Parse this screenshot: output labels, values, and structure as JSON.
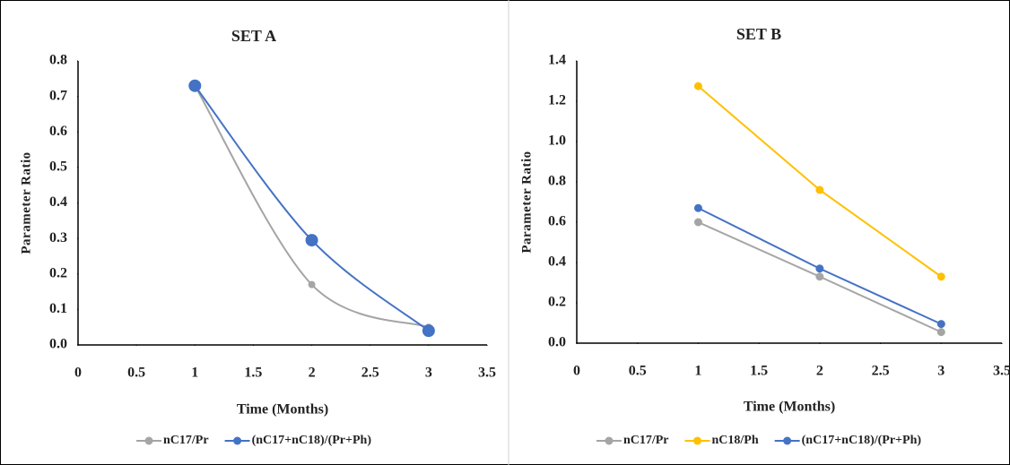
{
  "chart_data": [
    {
      "type": "line",
      "title": "SET A",
      "smooth": true,
      "x_label": "Time (Months)",
      "y_label": "Parameter Ratio",
      "xlim": [
        0,
        3.5
      ],
      "xticks": [
        0,
        0.5,
        1,
        1.5,
        2,
        2.5,
        3,
        3.5
      ],
      "ylim": [
        0,
        0.8
      ],
      "yticks": [
        {
          "value": 0,
          "label": "0.0"
        },
        0.1,
        0.2,
        0.3,
        0.4,
        0.5,
        0.6,
        0.7,
        0.8
      ],
      "x": [
        1,
        2,
        3
      ],
      "series": [
        {
          "name": "nC17/Pr",
          "color": "#a5a5a5",
          "values": [
            0.73,
            0.17,
            0.05
          ]
        },
        {
          "name": "(nC17+nC18)/(Pr+Ph)",
          "color": "#4472c4",
          "values": [
            0.73,
            0.295,
            0.04
          ]
        }
      ]
    },
    {
      "type": "line",
      "title": "SET B",
      "smooth": false,
      "x_label": "Time (Months)",
      "y_label": "Parameter  Ratio",
      "xlim": [
        0,
        3.5
      ],
      "xticks": [
        0,
        0.5,
        1,
        1.5,
        2,
        2.5,
        3,
        3.5
      ],
      "ylim": [
        0,
        1.4
      ],
      "yticks": [
        {
          "value": 0,
          "label": "0.0"
        },
        0.2,
        0.4,
        0.6,
        0.8,
        {
          "value": 1,
          "label": "1.0"
        },
        1.2,
        1.4
      ],
      "x": [
        1,
        2,
        3
      ],
      "series": [
        {
          "name": "nC17/Pr",
          "color": "#a5a5a5",
          "values": [
            0.6,
            0.33,
            0.055
          ]
        },
        {
          "name": "nC18/Ph",
          "color": "#ffc000",
          "values": [
            1.275,
            0.76,
            0.33
          ]
        },
        {
          "name": "(nC17+nC18)/(Pr+Ph)",
          "color": "#4472c4",
          "values": [
            0.67,
            0.37,
            0.095
          ]
        }
      ]
    }
  ]
}
